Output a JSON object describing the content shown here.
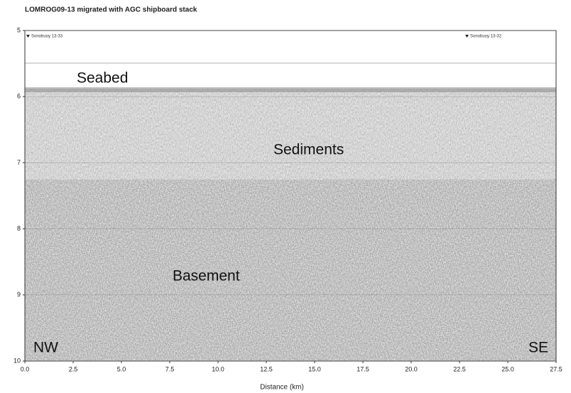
{
  "chart_data": {
    "type": "seismic",
    "title": "LOMROG09-13 migrated with AGC shipboard stack",
    "x_label": "Distance (km)",
    "xlim": [
      0,
      27.5
    ],
    "xticks": [
      {
        "value": 0,
        "label": "0.0"
      },
      2.5,
      {
        "value": 5,
        "label": "5.0"
      },
      7.5,
      {
        "value": 10,
        "label": "10.0"
      },
      12.5,
      {
        "value": 15,
        "label": "15.0"
      },
      17.5,
      {
        "value": 20,
        "label": "20.0"
      },
      22.5,
      {
        "value": 25,
        "label": "25.0"
      },
      27.5
    ],
    "ylim": [
      5,
      10
    ],
    "yticks": [
      5,
      6,
      7,
      8,
      9,
      10
    ],
    "y_inverted": true,
    "grid": true,
    "annotations": [
      "Seabed",
      "Sediments",
      "Basement",
      "NW",
      "SE"
    ],
    "markers": [
      "Sonobuoy 13-33",
      "Sonobuoy 13-32"
    ]
  }
}
